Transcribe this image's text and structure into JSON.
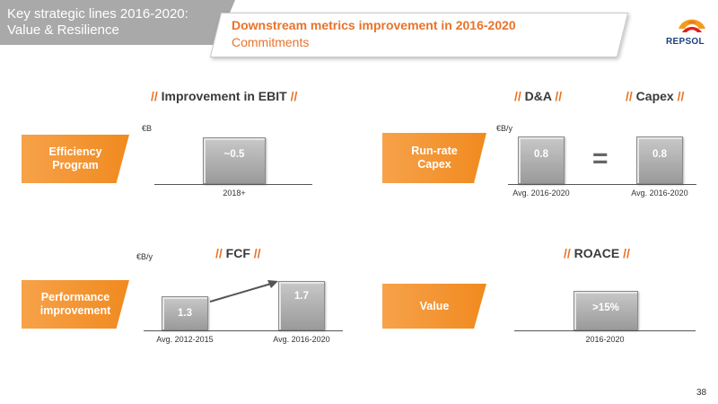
{
  "header": {
    "left_title_line1": "Key strategic lines 2016-2020:",
    "left_title_line2": "Value & Resilience",
    "title": "Downstream metrics improvement in 2016-2020",
    "subtitle": "Commitments"
  },
  "logo": {
    "text": "REPSOL"
  },
  "ebit": {
    "title_pre": "// ",
    "title": "Improvement in EBIT",
    "title_post": " //",
    "label_line1": "Efficiency",
    "label_line2": "Program",
    "unit": "€B",
    "bar_value": "~0.5",
    "x_label": "2018+"
  },
  "capex": {
    "da_title": "D&A",
    "capex_title": "Capex",
    "slash": "//",
    "label_line1": "Run-rate",
    "label_line2": "Capex",
    "unit": "€B/y",
    "da_value": "0.8",
    "capex_value": "0.8",
    "equals": "=",
    "da_x_label": "Avg. 2016-2020",
    "capex_x_label": "Avg. 2016-2020"
  },
  "fcf": {
    "title": "FCF",
    "slash": "//",
    "label_line1": "Performance",
    "label_line2": "improvement",
    "unit": "€B/y",
    "bar1_value": "1.3",
    "bar2_value": "1.7",
    "bar1_x_label": "Avg. 2012-2015",
    "bar2_x_label": "Avg. 2016-2020"
  },
  "roace": {
    "title": "ROACE",
    "slash": "//",
    "label": "Value",
    "bar_value": ">15%",
    "x_label": "2016-2020"
  },
  "page_number": "38",
  "colors": {
    "accent": "#e8732a",
    "bar": "#a6a6a6",
    "header_gray": "#a9a9a9",
    "logo_blue": "#1c3f7a"
  }
}
